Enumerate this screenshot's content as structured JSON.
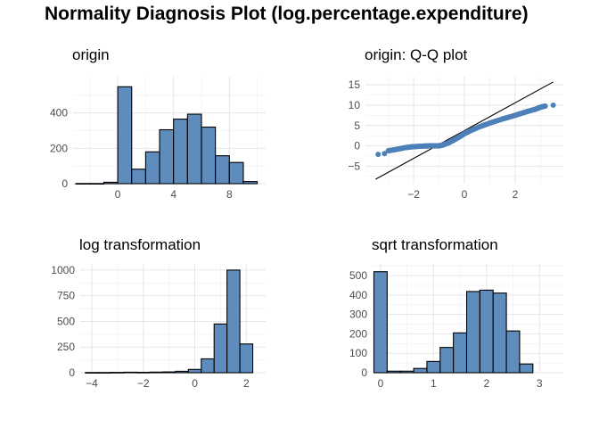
{
  "title": "Normality Diagnosis Plot (log.percentage.expenditure)",
  "colors": {
    "bar_fill": "#5d8cbd",
    "bar_stroke": "#000000",
    "point": "#4f80b8",
    "line": "#000000",
    "grid": "#e6e6e6"
  },
  "chart_data": [
    {
      "type": "bar",
      "subtype": "histogram",
      "title": "origin",
      "xlim": [
        -3.2,
        10.6
      ],
      "ylim": [
        0,
        605
      ],
      "xticks": [
        0,
        4,
        8
      ],
      "yticks": [
        0,
        200,
        400
      ],
      "grid": true,
      "bins": [
        {
          "x0": -3,
          "x1": -2,
          "count": 1
        },
        {
          "x0": -2,
          "x1": -1,
          "count": 1
        },
        {
          "x0": -1,
          "x1": 0,
          "count": 8
        },
        {
          "x0": 0,
          "x1": 1,
          "count": 548
        },
        {
          "x0": 1,
          "x1": 2,
          "count": 82
        },
        {
          "x0": 2,
          "x1": 3,
          "count": 180
        },
        {
          "x0": 3,
          "x1": 4,
          "count": 305
        },
        {
          "x0": 4,
          "x1": 5,
          "count": 365
        },
        {
          "x0": 5,
          "x1": 6,
          "count": 393
        },
        {
          "x0": 6,
          "x1": 7,
          "count": 320
        },
        {
          "x0": 7,
          "x1": 8,
          "count": 158
        },
        {
          "x0": 8,
          "x1": 9,
          "count": 120
        },
        {
          "x0": 9,
          "x1": 10,
          "count": 12
        }
      ]
    },
    {
      "type": "scatter",
      "subtype": "qq",
      "title": "origin: Q-Q plot",
      "xlim": [
        -3.9,
        3.9
      ],
      "ylim": [
        -9.3,
        17.0
      ],
      "xticks": [
        -2,
        0,
        2
      ],
      "yticks": [
        -5,
        0,
        5,
        10,
        15
      ],
      "grid": true,
      "reference_line": {
        "x0": -3.5,
        "y0": -8.2,
        "x1": 3.5,
        "y1": 15.7
      },
      "curve": [
        [
          -3.4,
          -2.1
        ],
        [
          -3.15,
          -1.9
        ],
        [
          -3.0,
          -1.2
        ],
        [
          -2.7,
          -0.9
        ],
        [
          -2.3,
          -0.4
        ],
        [
          -2.0,
          -0.2
        ],
        [
          -1.6,
          -0.05
        ],
        [
          -1.3,
          0.0
        ],
        [
          -1.0,
          0.0
        ],
        [
          -0.85,
          0.2
        ],
        [
          -0.6,
          0.8
        ],
        [
          -0.4,
          1.5
        ],
        [
          -0.2,
          2.2
        ],
        [
          0.0,
          3.0
        ],
        [
          0.3,
          3.9
        ],
        [
          0.6,
          4.7
        ],
        [
          1.0,
          5.6
        ],
        [
          1.5,
          6.6
        ],
        [
          2.0,
          7.5
        ],
        [
          2.4,
          8.3
        ],
        [
          2.8,
          9.0
        ],
        [
          3.0,
          9.5
        ],
        [
          3.2,
          9.8
        ],
        [
          3.5,
          10.0
        ]
      ]
    },
    {
      "type": "bar",
      "subtype": "histogram",
      "title": "log transformation",
      "xlim": [
        -4.45,
        2.75
      ],
      "ylim": [
        0,
        1060
      ],
      "xticks": [
        -4,
        -2,
        0,
        2
      ],
      "yticks": [
        0,
        250,
        500,
        750,
        1000
      ],
      "grid": true,
      "bins": [
        {
          "x0": -4.25,
          "x1": -3.75,
          "count": 2
        },
        {
          "x0": -3.75,
          "x1": -3.25,
          "count": 2
        },
        {
          "x0": -3.25,
          "x1": -2.75,
          "count": 3
        },
        {
          "x0": -2.75,
          "x1": -2.25,
          "count": 5
        },
        {
          "x0": -2.25,
          "x1": -1.75,
          "count": 4
        },
        {
          "x0": -1.75,
          "x1": -1.25,
          "count": 6
        },
        {
          "x0": -1.25,
          "x1": -0.75,
          "count": 8
        },
        {
          "x0": -0.75,
          "x1": -0.25,
          "count": 14
        },
        {
          "x0": -0.25,
          "x1": 0.25,
          "count": 32
        },
        {
          "x0": 0.25,
          "x1": 0.75,
          "count": 135
        },
        {
          "x0": 0.75,
          "x1": 1.25,
          "count": 475
        },
        {
          "x0": 1.25,
          "x1": 1.75,
          "count": 1000
        },
        {
          "x0": 1.75,
          "x1": 2.25,
          "count": 280
        }
      ]
    },
    {
      "type": "bar",
      "subtype": "histogram",
      "title": "sqrt transformation",
      "xlim": [
        -0.15,
        3.45
      ],
      "ylim": [
        0,
        560
      ],
      "xticks": [
        0,
        1,
        2,
        3
      ],
      "yticks": [
        0,
        100,
        200,
        300,
        400,
        500
      ],
      "grid": true,
      "bins": [
        {
          "x0": -0.125,
          "x1": 0.125,
          "count": 520
        },
        {
          "x0": 0.125,
          "x1": 0.375,
          "count": 8
        },
        {
          "x0": 0.375,
          "x1": 0.625,
          "count": 8
        },
        {
          "x0": 0.625,
          "x1": 0.875,
          "count": 22
        },
        {
          "x0": 0.875,
          "x1": 1.125,
          "count": 58
        },
        {
          "x0": 1.125,
          "x1": 1.375,
          "count": 130
        },
        {
          "x0": 1.375,
          "x1": 1.625,
          "count": 205
        },
        {
          "x0": 1.625,
          "x1": 1.875,
          "count": 418
        },
        {
          "x0": 1.875,
          "x1": 2.125,
          "count": 425
        },
        {
          "x0": 2.125,
          "x1": 2.375,
          "count": 410
        },
        {
          "x0": 2.375,
          "x1": 2.625,
          "count": 215
        },
        {
          "x0": 2.625,
          "x1": 2.875,
          "count": 45
        }
      ]
    }
  ]
}
